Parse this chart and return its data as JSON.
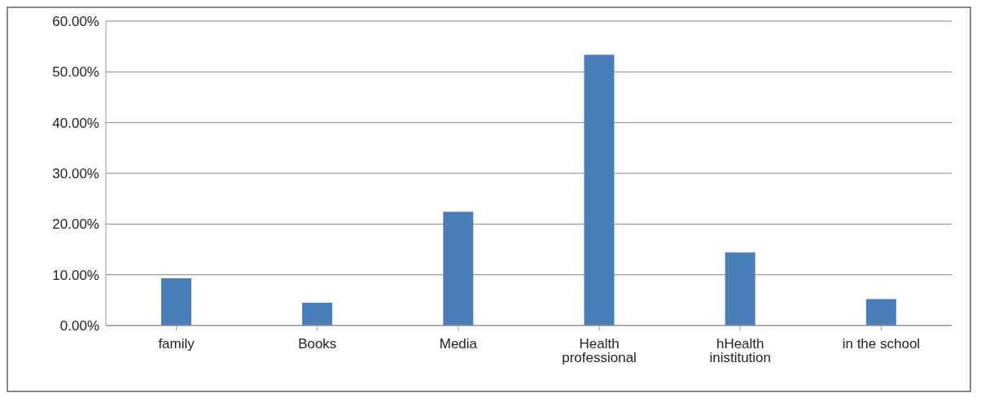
{
  "chart_data": {
    "type": "bar",
    "categories": [
      "family",
      "Books",
      "Media",
      "Health professional",
      "hHealth inistitution",
      "in the school"
    ],
    "values": [
      9.3,
      4.5,
      22.4,
      53.4,
      14.4,
      5.2
    ],
    "color": "#4a7ebb",
    "ylim": [
      0,
      60
    ],
    "yticks": [
      {
        "value": 0,
        "label": "0.00%"
      },
      {
        "value": 10,
        "label": "10.00%"
      },
      {
        "value": 20,
        "label": "20.00%"
      },
      {
        "value": 30,
        "label": "30.00%"
      },
      {
        "value": 40,
        "label": "40.00%"
      },
      {
        "value": 50,
        "label": "50.00%"
      },
      {
        "value": 60,
        "label": "60.00%"
      }
    ],
    "grid": "y"
  }
}
